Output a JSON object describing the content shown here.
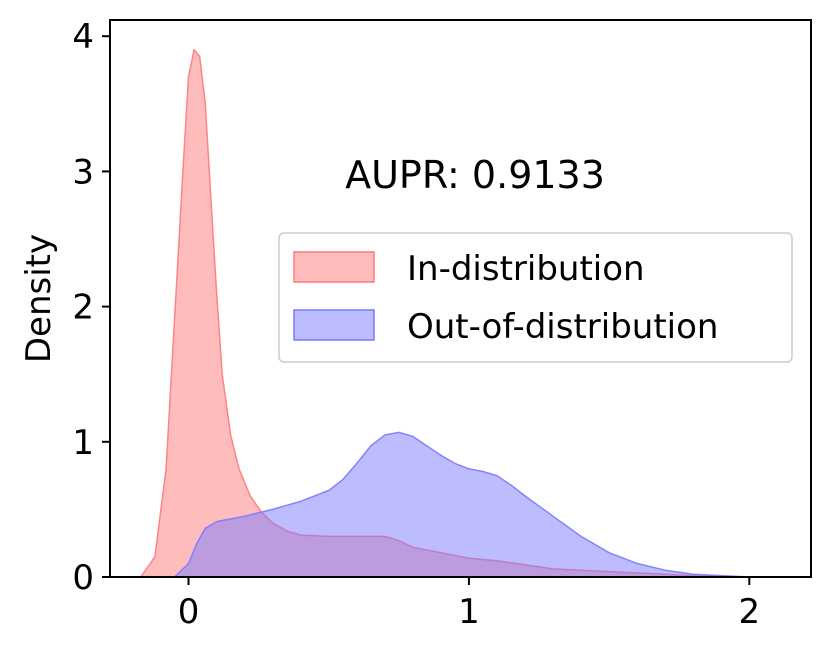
{
  "chart_data": {
    "type": "area",
    "title": "",
    "xlabel": "",
    "ylabel": "Density",
    "xlim": [
      -0.28,
      2.22
    ],
    "ylim": [
      0,
      4.12
    ],
    "x_ticks": [
      0,
      1,
      2
    ],
    "y_ticks": [
      0,
      1,
      2,
      3,
      4
    ],
    "x_tick_labels": [
      "0",
      "1",
      "2"
    ],
    "y_tick_labels": [
      "0",
      "1",
      "2",
      "3",
      "4"
    ],
    "grid": false,
    "legend_position": "center-right",
    "annotation": "AUPR: 0.9133",
    "series": [
      {
        "name": "In-distribution",
        "color": "#ff7a7a",
        "x": [
          -0.17,
          -0.12,
          -0.08,
          -0.05,
          -0.02,
          0.0,
          0.02,
          0.04,
          0.06,
          0.08,
          0.1,
          0.12,
          0.15,
          0.18,
          0.22,
          0.26,
          0.3,
          0.35,
          0.4,
          0.5,
          0.6,
          0.7,
          0.75,
          0.8,
          0.9,
          1.0,
          1.1,
          1.2,
          1.3,
          1.4,
          1.5,
          1.6,
          1.7,
          1.8,
          1.9,
          2.0
        ],
        "y": [
          0.0,
          0.15,
          0.8,
          1.9,
          3.0,
          3.7,
          3.9,
          3.85,
          3.5,
          2.8,
          2.1,
          1.5,
          1.05,
          0.8,
          0.6,
          0.48,
          0.4,
          0.34,
          0.31,
          0.3,
          0.3,
          0.3,
          0.27,
          0.22,
          0.18,
          0.14,
          0.12,
          0.09,
          0.06,
          0.05,
          0.04,
          0.03,
          0.02,
          0.01,
          0.005,
          0.0
        ]
      },
      {
        "name": "Out-of-distribution",
        "color": "#7a7aff",
        "x": [
          -0.05,
          0.0,
          0.03,
          0.06,
          0.1,
          0.15,
          0.2,
          0.3,
          0.4,
          0.5,
          0.55,
          0.6,
          0.65,
          0.7,
          0.75,
          0.8,
          0.85,
          0.9,
          0.95,
          1.0,
          1.05,
          1.1,
          1.15,
          1.2,
          1.3,
          1.4,
          1.5,
          1.6,
          1.7,
          1.8,
          1.9,
          2.0
        ],
        "y": [
          0.0,
          0.1,
          0.25,
          0.36,
          0.41,
          0.43,
          0.45,
          0.5,
          0.56,
          0.64,
          0.72,
          0.84,
          0.97,
          1.05,
          1.07,
          1.04,
          0.97,
          0.9,
          0.84,
          0.8,
          0.78,
          0.75,
          0.68,
          0.6,
          0.45,
          0.3,
          0.18,
          0.1,
          0.05,
          0.02,
          0.01,
          0.0
        ]
      }
    ]
  }
}
